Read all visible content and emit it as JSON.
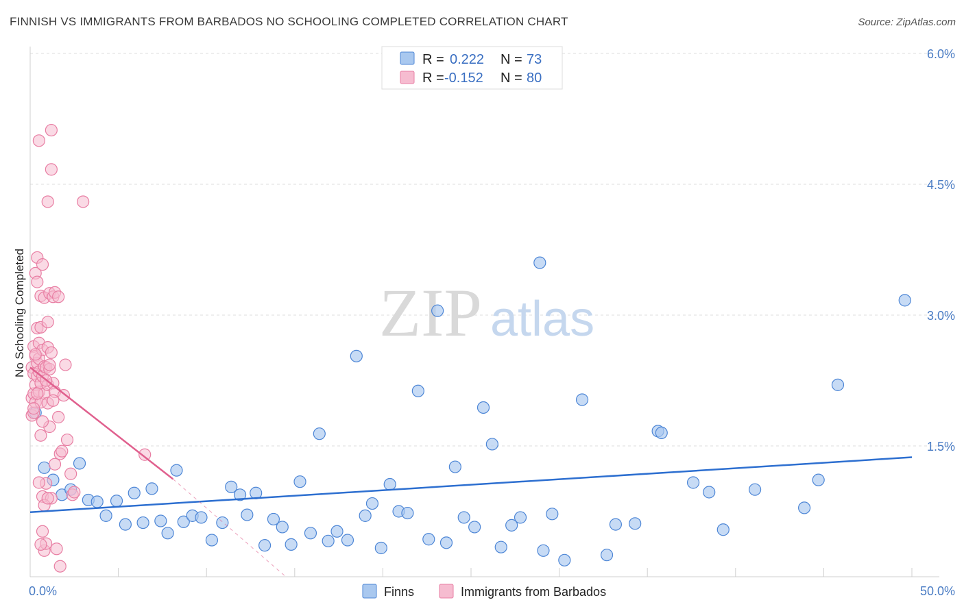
{
  "title": "FINNISH VS IMMIGRANTS FROM BARBADOS NO SCHOOLING COMPLETED CORRELATION CHART",
  "source": "Source: ZipAtlas.com",
  "watermark": {
    "zip": "ZIP",
    "atlas": "atlas"
  },
  "colors": {
    "finns_fill": "#a9c8ef",
    "finns_stroke": "#4d86d6",
    "finns_line": "#2d6fd0",
    "barbados_fill": "#f6bcd0",
    "barbados_stroke": "#e87ea3",
    "barbados_line": "#e0608e",
    "grid": "#dedede",
    "axis_text": "#4a7cc4"
  },
  "legend": {
    "rows": [
      {
        "r_label": "R =",
        "r_value": "0.222",
        "n_label": "N =",
        "n_value": "73"
      },
      {
        "r_label": "R =",
        "r_value": "-0.152",
        "n_label": "N =",
        "n_value": "80"
      }
    ]
  },
  "chart_data": {
    "type": "scatter",
    "title": "FINNISH VS IMMIGRANTS FROM BARBADOS NO SCHOOLING COMPLETED CORRELATION CHART",
    "xlabel": "",
    "ylabel": "No Schooling Completed",
    "xlim": [
      0,
      50
    ],
    "ylim": [
      0,
      6.0
    ],
    "x_tick_labels": [
      "0.0%",
      "50.0%"
    ],
    "y_ticks": [
      1.5,
      3.0,
      4.5,
      6.0
    ],
    "y_tick_labels": [
      "1.5%",
      "3.0%",
      "4.5%",
      "6.0%"
    ],
    "grid": true,
    "series": [
      {
        "name": "Finns",
        "R": 0.222,
        "N": 73,
        "trend": {
          "x": [
            0,
            50
          ],
          "y": [
            0.74,
            1.37
          ]
        },
        "points": [
          [
            0.3,
            1.88
          ],
          [
            0.8,
            1.25
          ],
          [
            1.3,
            1.11
          ],
          [
            1.8,
            0.94
          ],
          [
            2.3,
            1.0
          ],
          [
            2.8,
            1.3
          ],
          [
            3.3,
            0.88
          ],
          [
            3.8,
            0.86
          ],
          [
            4.3,
            0.7
          ],
          [
            4.9,
            0.87
          ],
          [
            5.4,
            0.6
          ],
          [
            5.9,
            0.96
          ],
          [
            6.4,
            0.62
          ],
          [
            6.9,
            1.01
          ],
          [
            7.4,
            0.64
          ],
          [
            7.8,
            0.5
          ],
          [
            8.3,
            1.22
          ],
          [
            8.7,
            0.63
          ],
          [
            9.2,
            0.7
          ],
          [
            9.7,
            0.68
          ],
          [
            10.3,
            0.42
          ],
          [
            10.9,
            0.62
          ],
          [
            11.4,
            1.03
          ],
          [
            11.9,
            0.94
          ],
          [
            12.3,
            0.71
          ],
          [
            12.8,
            0.96
          ],
          [
            13.3,
            0.36
          ],
          [
            13.8,
            0.66
          ],
          [
            14.3,
            0.57
          ],
          [
            14.8,
            0.37
          ],
          [
            15.3,
            1.09
          ],
          [
            15.9,
            0.5
          ],
          [
            16.4,
            1.64
          ],
          [
            16.9,
            0.41
          ],
          [
            17.4,
            0.52
          ],
          [
            18.0,
            0.42
          ],
          [
            18.5,
            2.53
          ],
          [
            19.0,
            0.7
          ],
          [
            19.4,
            0.84
          ],
          [
            19.9,
            0.33
          ],
          [
            20.4,
            1.06
          ],
          [
            20.9,
            0.75
          ],
          [
            21.4,
            0.73
          ],
          [
            22.0,
            2.13
          ],
          [
            22.6,
            0.43
          ],
          [
            23.1,
            3.05
          ],
          [
            23.6,
            0.39
          ],
          [
            24.1,
            1.26
          ],
          [
            24.6,
            0.68
          ],
          [
            25.2,
            0.57
          ],
          [
            25.7,
            1.94
          ],
          [
            26.2,
            1.52
          ],
          [
            26.7,
            0.34
          ],
          [
            27.3,
            0.59
          ],
          [
            27.8,
            0.68
          ],
          [
            28.9,
            3.6
          ],
          [
            29.1,
            0.3
          ],
          [
            29.6,
            0.72
          ],
          [
            30.3,
            0.19
          ],
          [
            31.3,
            2.03
          ],
          [
            32.7,
            0.25
          ],
          [
            33.2,
            0.6
          ],
          [
            34.3,
            0.61
          ],
          [
            35.6,
            1.67
          ],
          [
            35.8,
            1.65
          ],
          [
            37.6,
            1.08
          ],
          [
            38.5,
            0.97
          ],
          [
            39.3,
            0.54
          ],
          [
            41.1,
            1.0
          ],
          [
            43.9,
            0.79
          ],
          [
            44.7,
            1.11
          ],
          [
            45.8,
            2.2
          ],
          [
            49.6,
            3.17
          ]
        ]
      },
      {
        "name": "Immigrants from Barbados",
        "R": -0.152,
        "N": 80,
        "trend": {
          "x": [
            0,
            8.1
          ],
          "y": [
            2.4,
            1.12
          ]
        },
        "trend_extension": {
          "x": [
            8.1,
            14.5
          ],
          "y": [
            1.12,
            0.0
          ]
        },
        "points": [
          [
            0.1,
            2.4
          ],
          [
            0.1,
            2.05
          ],
          [
            0.1,
            1.85
          ],
          [
            0.2,
            2.64
          ],
          [
            0.2,
            2.33
          ],
          [
            0.2,
            2.1
          ],
          [
            0.2,
            1.88
          ],
          [
            0.3,
            3.48
          ],
          [
            0.3,
            2.53
          ],
          [
            0.3,
            2.2
          ],
          [
            0.3,
            2.0
          ],
          [
            0.4,
            3.38
          ],
          [
            0.4,
            3.66
          ],
          [
            0.4,
            2.85
          ],
          [
            0.4,
            2.45
          ],
          [
            0.4,
            2.3
          ],
          [
            0.5,
            5.0
          ],
          [
            0.5,
            2.68
          ],
          [
            0.5,
            2.5
          ],
          [
            0.5,
            2.35
          ],
          [
            0.5,
            2.12
          ],
          [
            0.6,
            3.22
          ],
          [
            0.6,
            2.86
          ],
          [
            0.6,
            2.22
          ],
          [
            0.6,
            2.0
          ],
          [
            0.6,
            1.62
          ],
          [
            0.7,
            3.58
          ],
          [
            0.7,
            2.6
          ],
          [
            0.7,
            2.3
          ],
          [
            0.7,
            0.92
          ],
          [
            0.7,
            0.52
          ],
          [
            0.8,
            3.2
          ],
          [
            0.8,
            2.41
          ],
          [
            0.8,
            2.1
          ],
          [
            0.8,
            0.3
          ],
          [
            0.9,
            2.4
          ],
          [
            0.9,
            1.07
          ],
          [
            0.9,
            0.38
          ],
          [
            1.0,
            4.3
          ],
          [
            1.0,
            2.92
          ],
          [
            1.0,
            2.63
          ],
          [
            1.0,
            2.2
          ],
          [
            1.0,
            1.99
          ],
          [
            1.1,
            3.25
          ],
          [
            1.1,
            2.38
          ],
          [
            1.1,
            1.72
          ],
          [
            1.2,
            5.12
          ],
          [
            1.2,
            4.67
          ],
          [
            1.2,
            2.57
          ],
          [
            1.2,
            0.9
          ],
          [
            1.3,
            3.21
          ],
          [
            1.3,
            2.22
          ],
          [
            1.4,
            3.26
          ],
          [
            1.4,
            2.12
          ],
          [
            1.4,
            1.29
          ],
          [
            1.5,
            0.32
          ],
          [
            1.6,
            3.21
          ],
          [
            1.6,
            1.83
          ],
          [
            1.7,
            1.41
          ],
          [
            1.7,
            0.12
          ],
          [
            1.8,
            1.44
          ],
          [
            1.9,
            2.08
          ],
          [
            2.0,
            2.43
          ],
          [
            2.1,
            1.57
          ],
          [
            2.3,
            1.18
          ],
          [
            2.4,
            0.94
          ],
          [
            2.5,
            0.97
          ],
          [
            3.0,
            4.3
          ],
          [
            0.6,
            0.37
          ],
          [
            0.3,
            2.55
          ],
          [
            0.4,
            2.1
          ],
          [
            0.7,
            1.78
          ],
          [
            0.9,
            2.25
          ],
          [
            1.1,
            2.43
          ],
          [
            1.3,
            2.02
          ],
          [
            0.2,
            1.93
          ],
          [
            0.5,
            1.08
          ],
          [
            0.8,
            0.82
          ],
          [
            6.5,
            1.4
          ],
          [
            1.0,
            0.9
          ]
        ]
      }
    ]
  },
  "bottom_legend": [
    {
      "label": "Finns"
    },
    {
      "label": "Immigrants from Barbados"
    }
  ]
}
